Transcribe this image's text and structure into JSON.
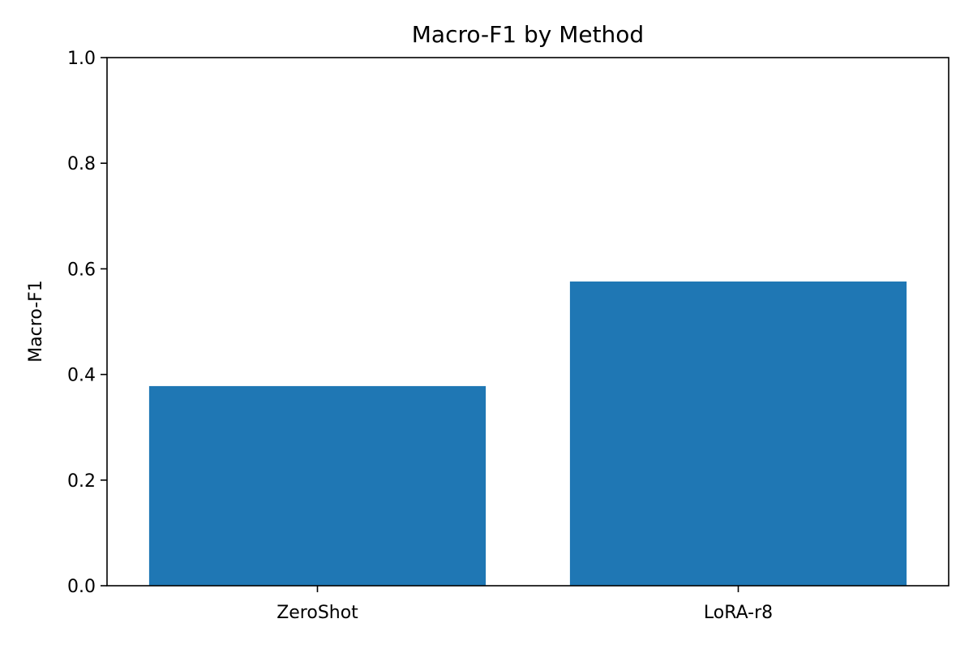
{
  "chart_data": {
    "type": "bar",
    "title": "Macro-F1 by Method",
    "xlabel": "",
    "ylabel": "Macro-F1",
    "categories": [
      "ZeroShot",
      "LoRA-r8"
    ],
    "values": [
      0.378,
      0.576
    ],
    "ylim": [
      0,
      1.0
    ],
    "yticks": [
      "0.0",
      "0.2",
      "0.4",
      "0.6",
      "0.8",
      "1.0"
    ],
    "grid": false,
    "bar_color": "#1f77b4"
  }
}
